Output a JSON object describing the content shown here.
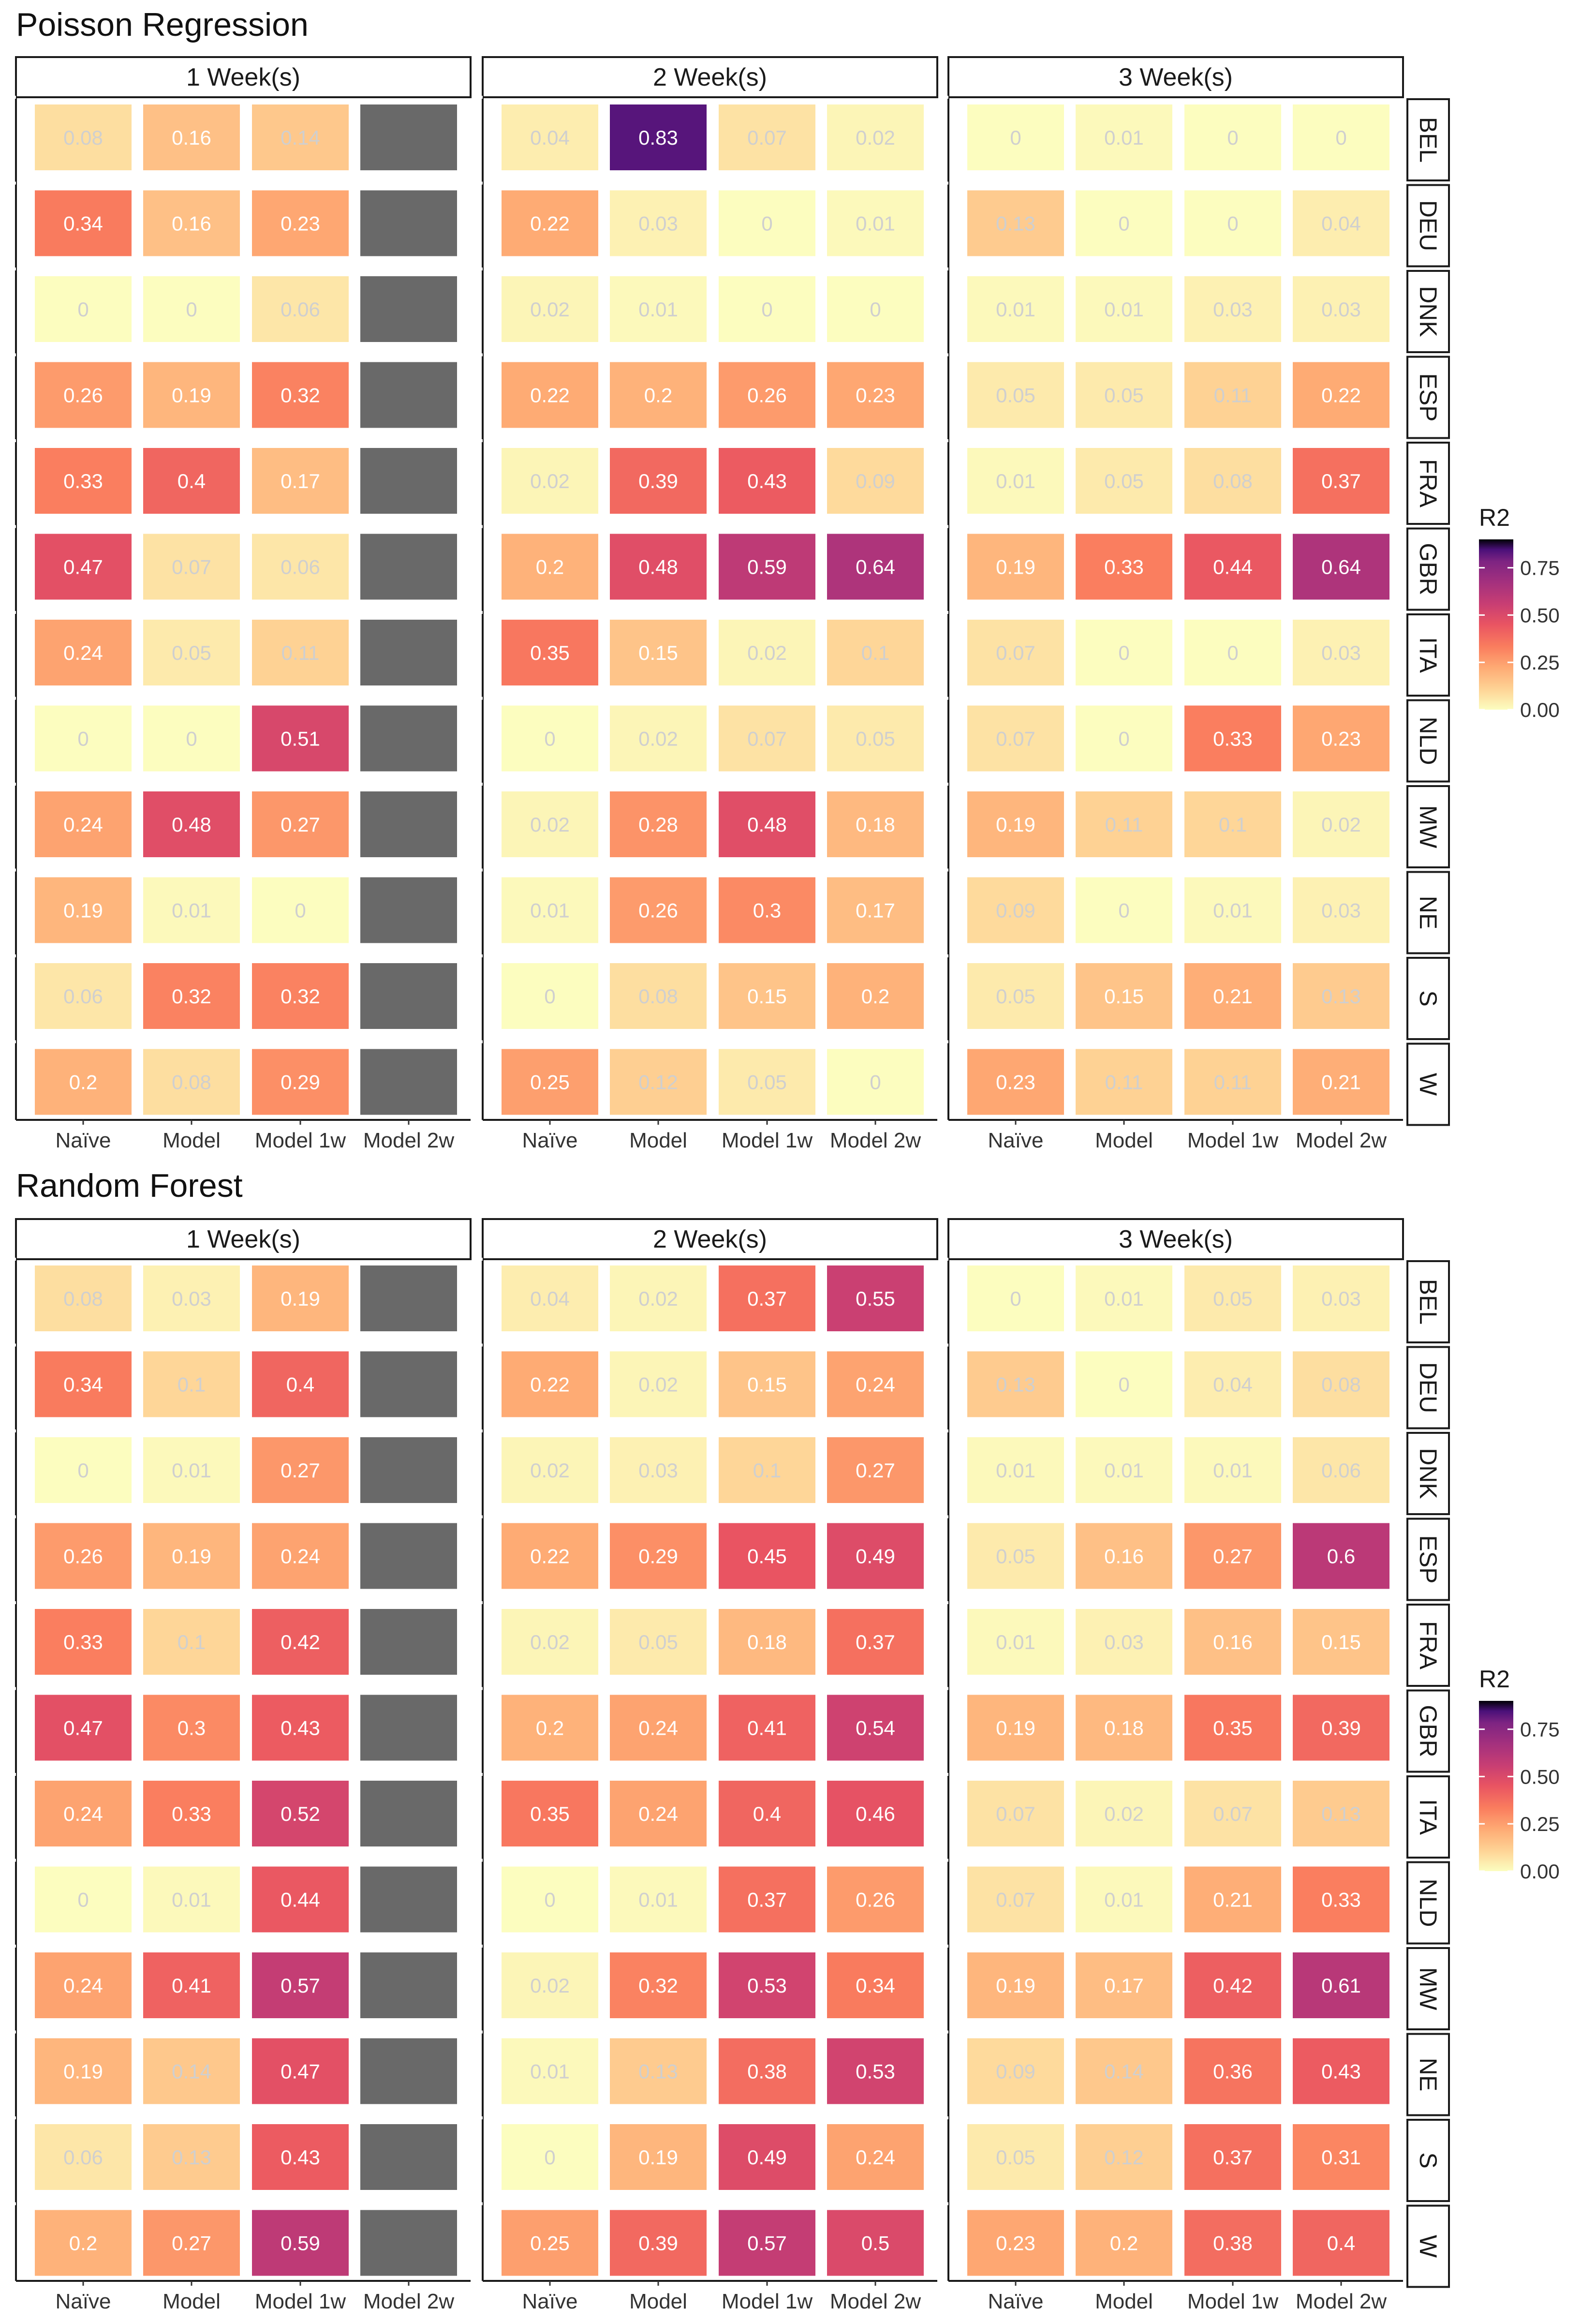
{
  "chart_data": [
    {
      "type": "heatmap",
      "title": "Poisson Regression",
      "panels": [
        "1 Week(s)",
        "2 Week(s)",
        "3 Week(s)"
      ],
      "rows": [
        "BEL",
        "DEU",
        "DNK",
        "ESP",
        "FRA",
        "GBR",
        "ITA",
        "NLD",
        "MW",
        "NE",
        "S",
        "W"
      ],
      "columns": [
        "Naïve",
        "Model",
        "Model 1w",
        "Model 2w"
      ],
      "legend_title": "R2",
      "legend_ticks": [
        "0.75",
        "0.50",
        "0.25",
        "0.00"
      ],
      "value_range": [
        0,
        0.9
      ],
      "values": [
        [
          [
            0.08,
            0.16,
            0.14,
            null
          ],
          [
            0.34,
            0.16,
            0.23,
            null
          ],
          [
            0,
            0,
            0.06,
            null
          ],
          [
            0.26,
            0.19,
            0.32,
            null
          ],
          [
            0.33,
            0.4,
            0.17,
            null
          ],
          [
            0.47,
            0.07,
            0.06,
            null
          ],
          [
            0.24,
            0.05,
            0.11,
            null
          ],
          [
            0,
            0,
            0.51,
            null
          ],
          [
            0.24,
            0.48,
            0.27,
            null
          ],
          [
            0.19,
            0.01,
            0,
            null
          ],
          [
            0.06,
            0.32,
            0.32,
            null
          ],
          [
            0.2,
            0.08,
            0.29,
            null
          ]
        ],
        [
          [
            0.04,
            0.83,
            0.07,
            0.02
          ],
          [
            0.22,
            0.03,
            0,
            0.01
          ],
          [
            0.02,
            0.01,
            0,
            0
          ],
          [
            0.22,
            0.2,
            0.26,
            0.23
          ],
          [
            0.02,
            0.39,
            0.43,
            0.09
          ],
          [
            0.2,
            0.48,
            0.59,
            0.64
          ],
          [
            0.35,
            0.15,
            0.02,
            0.1
          ],
          [
            0,
            0.02,
            0.07,
            0.05
          ],
          [
            0.02,
            0.28,
            0.48,
            0.18
          ],
          [
            0.01,
            0.26,
            0.3,
            0.17
          ],
          [
            0,
            0.08,
            0.15,
            0.2
          ],
          [
            0.25,
            0.12,
            0.05,
            0
          ]
        ],
        [
          [
            0,
            0.01,
            0,
            0
          ],
          [
            0.13,
            0,
            0,
            0.04
          ],
          [
            0.01,
            0.01,
            0.03,
            0.03
          ],
          [
            0.05,
            0.05,
            0.11,
            0.22
          ],
          [
            0.01,
            0.05,
            0.08,
            0.37
          ],
          [
            0.19,
            0.33,
            0.44,
            0.64
          ],
          [
            0.07,
            0,
            0,
            0.03
          ],
          [
            0.07,
            0,
            0.33,
            0.23
          ],
          [
            0.19,
            0.11,
            0.1,
            0.02
          ],
          [
            0.09,
            0,
            0.01,
            0.03
          ],
          [
            0.05,
            0.15,
            0.21,
            0.13
          ],
          [
            0.23,
            0.11,
            0.11,
            0.21
          ]
        ]
      ]
    },
    {
      "type": "heatmap",
      "title": "Random Forest",
      "panels": [
        "1 Week(s)",
        "2 Week(s)",
        "3 Week(s)"
      ],
      "rows": [
        "BEL",
        "DEU",
        "DNK",
        "ESP",
        "FRA",
        "GBR",
        "ITA",
        "NLD",
        "MW",
        "NE",
        "S",
        "W"
      ],
      "columns": [
        "Naïve",
        "Model",
        "Model 1w",
        "Model 2w"
      ],
      "legend_title": "R2",
      "legend_ticks": [
        "0.75",
        "0.50",
        "0.25",
        "0.00"
      ],
      "value_range": [
        0,
        0.9
      ],
      "values": [
        [
          [
            0.08,
            0.03,
            0.19,
            null
          ],
          [
            0.34,
            0.1,
            0.4,
            null
          ],
          [
            0,
            0.01,
            0.27,
            null
          ],
          [
            0.26,
            0.19,
            0.24,
            null
          ],
          [
            0.33,
            0.1,
            0.42,
            null
          ],
          [
            0.47,
            0.3,
            0.43,
            null
          ],
          [
            0.24,
            0.33,
            0.52,
            null
          ],
          [
            0,
            0.01,
            0.44,
            null
          ],
          [
            0.24,
            0.41,
            0.57,
            null
          ],
          [
            0.19,
            0.14,
            0.47,
            null
          ],
          [
            0.06,
            0.13,
            0.43,
            null
          ],
          [
            0.2,
            0.27,
            0.59,
            null
          ]
        ],
        [
          [
            0.04,
            0.02,
            0.37,
            0.55
          ],
          [
            0.22,
            0.02,
            0.15,
            0.24
          ],
          [
            0.02,
            0.03,
            0.1,
            0.27
          ],
          [
            0.22,
            0.29,
            0.45,
            0.49
          ],
          [
            0.02,
            0.05,
            0.18,
            0.37
          ],
          [
            0.2,
            0.24,
            0.41,
            0.54
          ],
          [
            0.35,
            0.24,
            0.4,
            0.46
          ],
          [
            0,
            0.01,
            0.37,
            0.26
          ],
          [
            0.02,
            0.32,
            0.53,
            0.34
          ],
          [
            0.01,
            0.13,
            0.38,
            0.53
          ],
          [
            0,
            0.19,
            0.49,
            0.24
          ],
          [
            0.25,
            0.39,
            0.57,
            0.5
          ]
        ],
        [
          [
            0,
            0.01,
            0.05,
            0.03
          ],
          [
            0.13,
            0,
            0.04,
            0.08
          ],
          [
            0.01,
            0.01,
            0.01,
            0.06
          ],
          [
            0.05,
            0.16,
            0.27,
            0.6
          ],
          [
            0.01,
            0.03,
            0.16,
            0.15
          ],
          [
            0.19,
            0.18,
            0.35,
            0.39
          ],
          [
            0.07,
            0.02,
            0.07,
            0.13
          ],
          [
            0.07,
            0.01,
            0.21,
            0.33
          ],
          [
            0.19,
            0.17,
            0.42,
            0.61
          ],
          [
            0.09,
            0.14,
            0.36,
            0.43
          ],
          [
            0.05,
            0.12,
            0.37,
            0.31
          ],
          [
            0.23,
            0.2,
            0.38,
            0.4
          ]
        ]
      ]
    }
  ]
}
